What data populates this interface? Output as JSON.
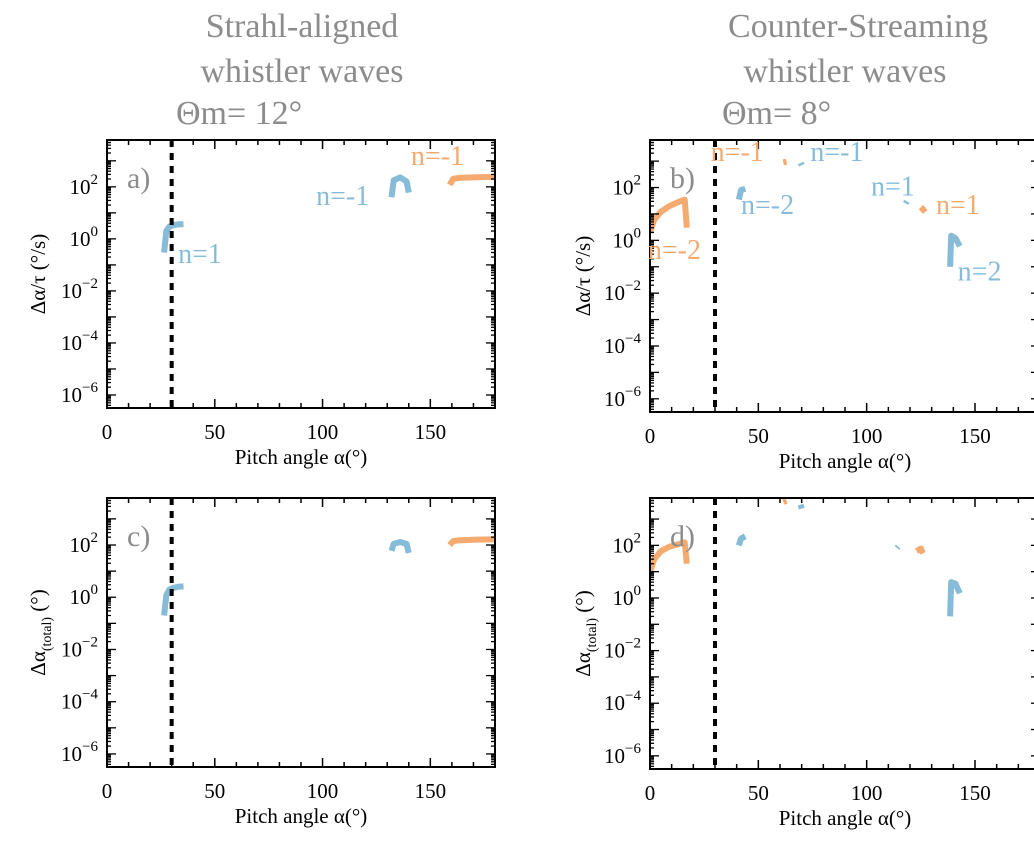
{
  "figure": {
    "columns": [
      {
        "title_lines": [
          "Strahl-aligned",
          "whistler waves",
          "Θm= 12°"
        ]
      },
      {
        "title_lines": [
          "Counter-Streaming",
          "whistler waves",
          "Θm= 8°"
        ]
      }
    ]
  },
  "colors": {
    "blue": "#86bcd8",
    "orange": "#f5aa70",
    "axis": "#000000",
    "title": "#8c8c8c"
  },
  "chart_data": [
    {
      "type": "line",
      "panel_label": "a)",
      "xlabel": "Pitch angle α(°)",
      "ylabel_main": "Δα/τ (°/s)",
      "ylabel_sub": "",
      "xlim": [
        0,
        180
      ],
      "ylim_log10": [
        -6.5,
        3.8
      ],
      "log_y": true,
      "xticks": [
        0,
        50,
        100,
        150
      ],
      "yticks_log10": [
        -6,
        -4,
        -2,
        0,
        2
      ],
      "threshold_x": 30,
      "series": [
        {
          "color": "blue",
          "x": [
            26.5,
            27.5,
            29,
            31,
            33,
            35.5
          ],
          "y": [
            0.3,
            2,
            3,
            3.4,
            3.6,
            3.7
          ]
        },
        {
          "color": "blue",
          "x": [
            132,
            133,
            136,
            139,
            140
          ],
          "y": [
            40,
            180,
            230,
            160,
            60
          ]
        },
        {
          "color": "orange",
          "x": [
            159,
            160.5,
            163,
            170,
            180
          ],
          "y": [
            120,
            200,
            220,
            230,
            240
          ]
        }
      ],
      "labels": [
        {
          "text": "n=1",
          "color": "blue",
          "x": 33,
          "y": 0.12
        },
        {
          "text": "n=-1",
          "color": "blue",
          "x": 97,
          "y": 20
        },
        {
          "text": "n=-1",
          "color": "orange",
          "x": 141,
          "y": 700
        }
      ]
    },
    {
      "type": "line",
      "panel_label": "b)",
      "xlabel": "Pitch angle α(°)",
      "ylabel_main": "Δα/τ (°/s)",
      "ylabel_sub": "",
      "xlim": [
        0,
        180
      ],
      "ylim_log10": [
        -6.5,
        3.8
      ],
      "log_y": true,
      "xticks": [
        0,
        50,
        100,
        150
      ],
      "yticks_log10": [
        -6,
        -4,
        -2,
        0,
        2
      ],
      "threshold_x": 30,
      "series": [
        {
          "color": "orange",
          "x": [
            0,
            2,
            5,
            9,
            13,
            16,
            17
          ],
          "y": [
            2,
            6,
            12,
            20,
            28,
            35,
            3
          ]
        },
        {
          "color": "blue",
          "x": [
            41,
            42,
            44
          ],
          "y": [
            35,
            80,
            90
          ]
        },
        {
          "color": "orange",
          "x": [
            61.5,
            63
          ],
          "y": [
            900,
            950
          ]
        },
        {
          "color": "blue",
          "x": [
            69.5,
            70
          ],
          "y": [
            850,
            700
          ]
        },
        {
          "color": "blue",
          "x": [
            118,
            118.5
          ],
          "y": [
            25,
            30
          ]
        },
        {
          "color": "orange",
          "x": [
            125,
            126,
            127
          ],
          "y": [
            18,
            15,
            12
          ]
        },
        {
          "color": "blue",
          "x": [
            138.5,
            139,
            141,
            143
          ],
          "y": [
            0.1,
            1.5,
            1.2,
            0.6
          ]
        }
      ],
      "labels": [
        {
          "text": "n=-1",
          "color": "orange",
          "x": 28,
          "y": 1000
        },
        {
          "text": "n=-1",
          "color": "blue",
          "x": 74,
          "y": 1000
        },
        {
          "text": "n=-2",
          "color": "blue",
          "x": 42,
          "y": 10
        },
        {
          "text": "n=1",
          "color": "blue",
          "x": 102,
          "y": 50
        },
        {
          "text": "n=1",
          "color": "orange",
          "x": 132,
          "y": 10
        },
        {
          "text": "n=-2",
          "color": "orange",
          "x": -1,
          "y": 0.2
        },
        {
          "text": "n=2",
          "color": "blue",
          "x": 142,
          "y": 0.03
        }
      ]
    },
    {
      "type": "line",
      "panel_label": "c)",
      "xlabel": "Pitch angle α(°)",
      "ylabel_main": "Δα",
      "ylabel_sub": "(total)",
      "ylabel_suffix": " (°)",
      "xlim": [
        0,
        180
      ],
      "ylim_log10": [
        -6.5,
        3.8
      ],
      "log_y": true,
      "xticks": [
        0,
        50,
        100,
        150
      ],
      "yticks_log10": [
        -6,
        -4,
        -2,
        0,
        2
      ],
      "threshold_x": 30,
      "series": [
        {
          "color": "blue",
          "x": [
            26.5,
            27.5,
            29,
            31,
            33,
            35.5
          ],
          "y": [
            0.2,
            1.2,
            2,
            2.3,
            2.5,
            2.6
          ]
        },
        {
          "color": "blue",
          "x": [
            132,
            133,
            136,
            139,
            140
          ],
          "y": [
            60,
            110,
            130,
            110,
            50
          ]
        },
        {
          "color": "orange",
          "x": [
            159,
            160.5,
            163,
            170,
            180
          ],
          "y": [
            100,
            140,
            150,
            160,
            165
          ]
        }
      ],
      "labels": []
    },
    {
      "type": "line",
      "panel_label": "d)",
      "xlabel": "Pitch angle α(°)",
      "ylabel_main": "Δα",
      "ylabel_sub": "(total)",
      "ylabel_suffix": " (°)",
      "xlim": [
        0,
        180
      ],
      "ylim_log10": [
        -6.5,
        3.8
      ],
      "log_y": true,
      "xticks": [
        0,
        50,
        100,
        150
      ],
      "yticks_log10": [
        -6,
        -4,
        -2,
        0,
        2
      ],
      "threshold_x": 30,
      "series": [
        {
          "color": "orange",
          "x": [
            0,
            2,
            5,
            9,
            13,
            16,
            17
          ],
          "y": [
            10,
            30,
            60,
            90,
            110,
            130,
            20
          ]
        },
        {
          "color": "blue",
          "x": [
            41,
            42,
            44
          ],
          "y": [
            100,
            180,
            220
          ]
        },
        {
          "color": "orange",
          "x": [
            61.5,
            63
          ],
          "y": [
            4500,
            5000
          ]
        },
        {
          "color": "blue",
          "x": [
            69.5,
            70
          ],
          "y": [
            3500,
            2500
          ]
        },
        {
          "color": "blue",
          "x": [
            114,
            114.5
          ],
          "y": [
            80,
            90
          ]
        },
        {
          "color": "orange",
          "x": [
            123,
            125,
            126
          ],
          "y": [
            60,
            75,
            50
          ]
        },
        {
          "color": "blue",
          "x": [
            138.5,
            139,
            141,
            143
          ],
          "y": [
            0.2,
            4,
            3.5,
            1.5
          ]
        }
      ],
      "labels": []
    }
  ]
}
